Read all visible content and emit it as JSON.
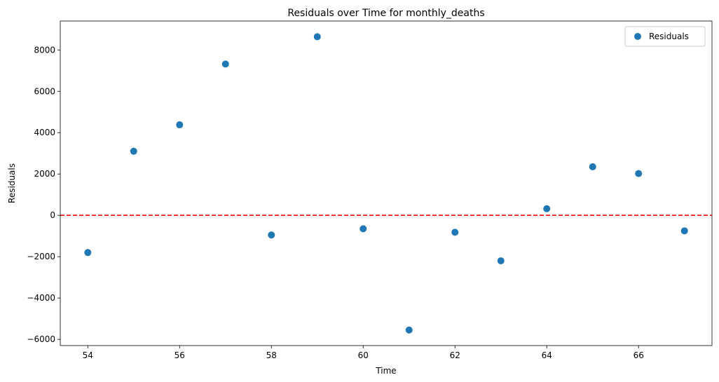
{
  "chart_data": {
    "type": "scatter",
    "title": "Residuals over Time for monthly_deaths",
    "xlabel": "Time",
    "ylabel": "Residuals",
    "xlim": [
      53.4,
      67.6
    ],
    "ylim": [
      -6300,
      9400
    ],
    "xticks": [
      54,
      56,
      58,
      60,
      62,
      64,
      66
    ],
    "yticks": [
      -6000,
      -4000,
      -2000,
      0,
      2000,
      4000,
      6000,
      8000
    ],
    "grid": false,
    "legend_position": "top-right",
    "reference_line": {
      "y": 0,
      "color": "#ff0000",
      "style": "dashed"
    },
    "series": [
      {
        "name": "Residuals",
        "color": "#1f77b4",
        "x": [
          54,
          55,
          56,
          57,
          58,
          59,
          60,
          61,
          62,
          63,
          64,
          65,
          66,
          67
        ],
        "y": [
          -1800,
          3100,
          4380,
          7320,
          -950,
          8640,
          -650,
          -5550,
          -820,
          -2200,
          320,
          2350,
          2020,
          -750
        ]
      }
    ]
  }
}
